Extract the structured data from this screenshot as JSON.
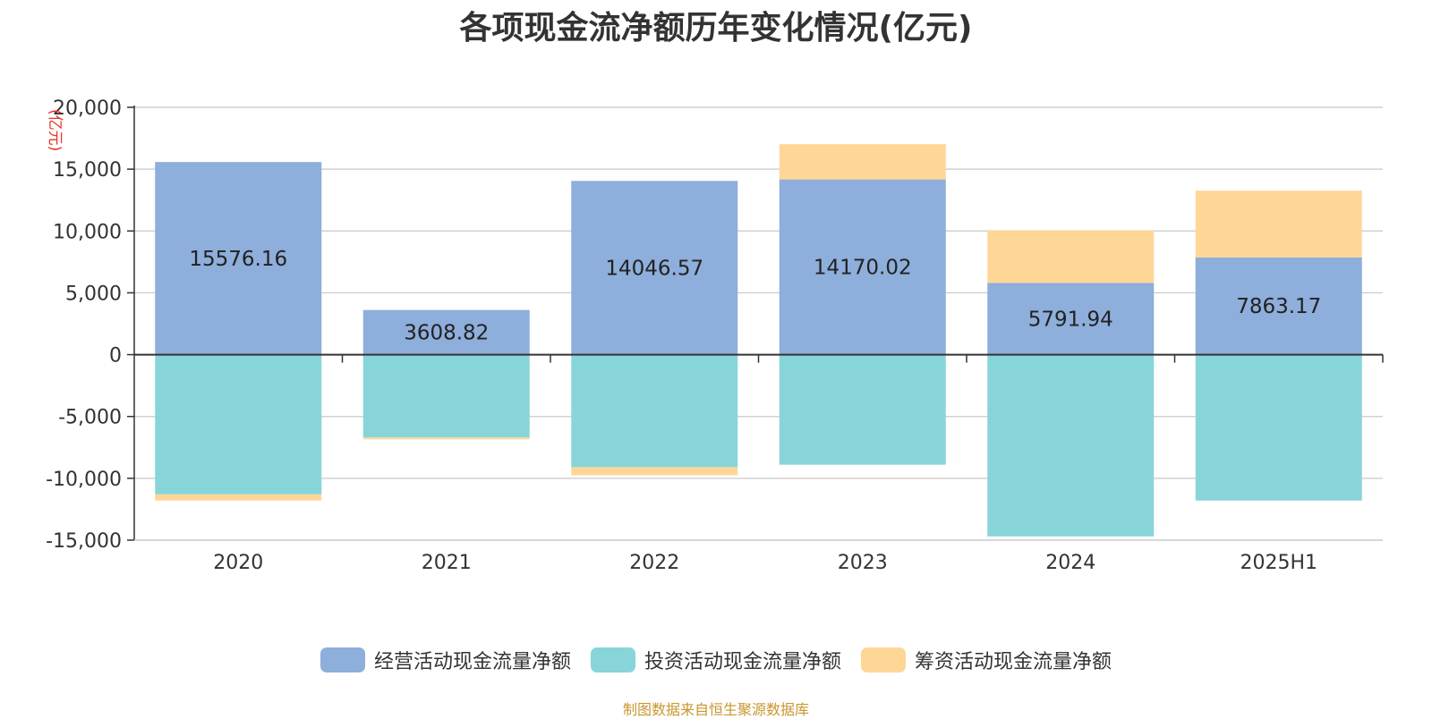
{
  "chart_data": {
    "type": "bar",
    "stacked": true,
    "title": "各项现金流净额历年变化情况(亿元)",
    "ylabel": "(亿元)",
    "xlabel": "",
    "categories": [
      "2020",
      "2021",
      "2022",
      "2023",
      "2024",
      "2025H1"
    ],
    "ylim": [
      -15000,
      20000
    ],
    "yticks": [
      20000,
      15000,
      10000,
      5000,
      0,
      -5000,
      -10000,
      -15000
    ],
    "ytick_labels": [
      "20,000",
      "15,000",
      "10,000",
      "5,000",
      "0",
      "-5,000",
      "-10,000",
      "-15,000"
    ],
    "grid": true,
    "legend_position": "bottom-center",
    "series": [
      {
        "name": "经营活动现金流量净额",
        "color": "#8eaedb",
        "values": [
          15576.16,
          3608.82,
          14046.57,
          14170.02,
          5791.94,
          7863.17
        ],
        "data_labels": [
          "15576.16",
          "3608.82",
          "14046.57",
          "14170.02",
          "5791.94",
          "7863.17"
        ]
      },
      {
        "name": "投资活动现金流量净额",
        "color": "#88d5d9",
        "values": [
          -11300,
          -6700,
          -9100,
          -8900,
          -14700,
          -11800
        ]
      },
      {
        "name": "筹资活动现金流量净额",
        "color": "#fed797",
        "values": [
          -500,
          -150,
          -650,
          2850,
          4250,
          5400
        ]
      }
    ]
  },
  "source_note": "制图数据来自恒生聚源数据库"
}
